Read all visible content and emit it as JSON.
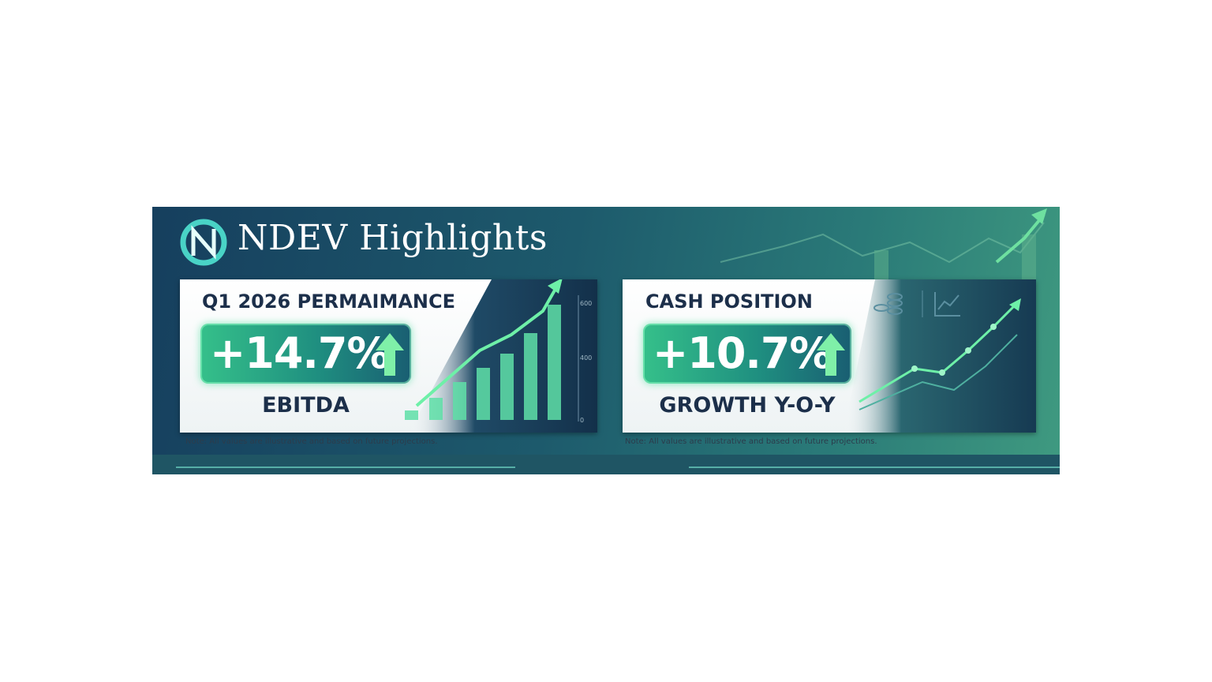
{
  "header": {
    "title": "NDEV Highlights"
  },
  "cards": [
    {
      "title": "Q1 2026 PERMAIMANCE",
      "value": "+14.7%",
      "label": "EBITDA",
      "axis_ticks": [
        "600",
        "400",
        "0"
      ],
      "note": "Note: All values are illustrative and based on future projections."
    },
    {
      "title": "CASH POSITION",
      "value": "+10.7%",
      "label": "GROWTH Y-O-Y",
      "note": "Note: All values are illustrative and based on future projections."
    }
  ]
}
